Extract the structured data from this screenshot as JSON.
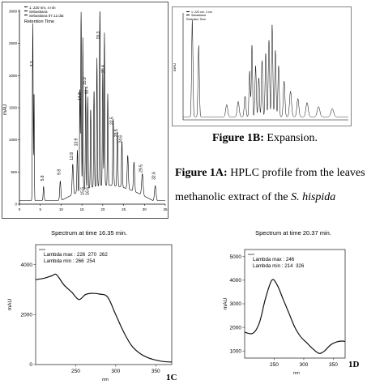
{
  "hplc_main": {
    "legend": [
      "1: 220 nm, 4 nm",
      "Sebastiana",
      "Sebastiana 07.12.dat"
    ],
    "retention_label": "Retention Time",
    "ylabel": "mAU",
    "y_ticks": [
      "0",
      "500",
      "1000",
      "1500",
      "2000",
      "2500",
      "3000"
    ],
    "x_ticks": [
      "0",
      "5",
      "10",
      "15",
      "20",
      "25",
      "30",
      "35"
    ],
    "peak_labels": [
      "3.3",
      "5.8",
      "9.8",
      "12.8",
      "13.9",
      "14.8",
      "15.9",
      "16.4",
      "19.3",
      "20.4",
      "22.5",
      "23.5",
      "24.6",
      "29.5",
      "32.6",
      "15.5",
      "16.6"
    ]
  },
  "hplc_expansion": {
    "legend": [
      "1: 220 nm, 4 nm",
      "Sebastiana",
      "Retention Time"
    ],
    "ylabel": "mAU"
  },
  "captions": {
    "fig1b_bold": "Figure 1B:",
    "fig1b_text": " Expansion.",
    "fig1a_bold": "Figure 1A:",
    "fig1a_text1": " HPLC profile from the leaves",
    "fig1a_text2": "methanolic extract of the ",
    "fig1a_species": "S. hispida"
  },
  "labels": {
    "c": "1C",
    "d": "1D"
  },
  "chart_data": [
    {
      "id": "1C",
      "type": "line",
      "title": "Spectrum at time 16.35 min.",
      "legend": [
        "Lambda max : 226  270  262",
        "Lambda min : 266  254"
      ],
      "xlabel": "nm",
      "ylabel": "mAU",
      "xlim": [
        200,
        370
      ],
      "ylim": [
        0,
        4800
      ],
      "x_ticks": [
        250,
        300,
        350
      ],
      "y_ticks": [
        0,
        2000,
        4000
      ],
      "x": [
        200,
        210,
        220,
        226,
        235,
        245,
        254,
        262,
        270,
        280,
        290,
        300,
        310,
        320,
        330,
        340,
        350,
        360,
        370
      ],
      "y": [
        3400,
        3450,
        3550,
        3600,
        3200,
        2900,
        2600,
        2800,
        2850,
        2820,
        2700,
        2000,
        1300,
        750,
        450,
        280,
        180,
        120,
        100
      ]
    },
    {
      "id": "1D",
      "type": "line",
      "title": "Spectrum at time 20.37 min.",
      "legend": [
        "Lambda max : 246",
        "Lambda min : 214  326"
      ],
      "xlabel": "nm",
      "ylabel": "mAU",
      "xlim": [
        200,
        370
      ],
      "ylim": [
        700,
        5300
      ],
      "x_ticks": [
        250,
        300,
        350
      ],
      "y_ticks": [
        1000,
        2000,
        3000,
        4000,
        5000
      ],
      "x": [
        200,
        214,
        225,
        235,
        246,
        255,
        265,
        275,
        285,
        295,
        305,
        315,
        326,
        335,
        345,
        355,
        365,
        370
      ],
      "y": [
        1800,
        1750,
        2200,
        3200,
        4000,
        3800,
        3200,
        2600,
        2000,
        1600,
        1350,
        1100,
        900,
        1000,
        1250,
        1380,
        1420,
        1400
      ]
    }
  ]
}
